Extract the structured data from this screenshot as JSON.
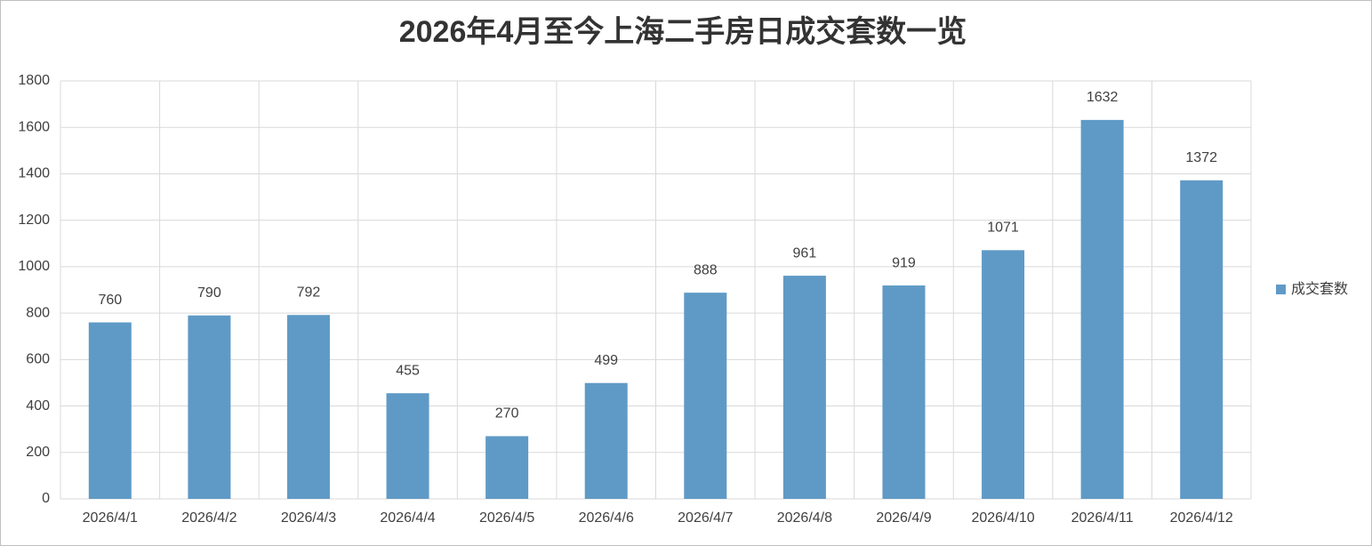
{
  "chart_data": {
    "type": "bar",
    "title": "2026年4月至今上海二手房日成交套数一览",
    "categories": [
      "2026/4/1",
      "2026/4/2",
      "2026/4/3",
      "2026/4/4",
      "2026/4/5",
      "2026/4/6",
      "2026/4/7",
      "2026/4/8",
      "2026/4/9",
      "2026/4/10",
      "2026/4/11",
      "2026/4/12"
    ],
    "series": [
      {
        "name": "成交套数",
        "color": "#5f9ac6",
        "values": [
          760,
          790,
          792,
          455,
          270,
          499,
          888,
          961,
          919,
          1071,
          1632,
          1372
        ]
      }
    ],
    "ylim": [
      0,
      1800
    ],
    "yticks": [
      0,
      200,
      400,
      600,
      800,
      1000,
      1200,
      1400,
      1600,
      1800
    ],
    "grid": true,
    "legend": "right"
  }
}
